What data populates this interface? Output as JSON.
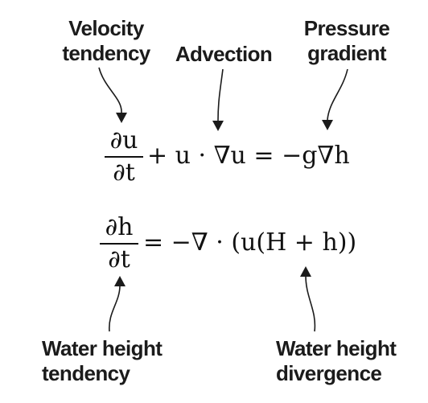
{
  "labels": {
    "velocity_tendency": [
      "Velocity",
      "tendency"
    ],
    "advection": "Advection",
    "pressure_gradient": [
      "Pressure",
      "gradient"
    ],
    "water_height_tendency": [
      "Water height",
      "tendency"
    ],
    "water_height_divergence": [
      "Water height",
      "divergence"
    ]
  },
  "equations": {
    "momentum": {
      "lhs_numerator": "∂u",
      "lhs_denominator": "∂t",
      "rhs": "+ u · ∇u = −g∇h"
    },
    "continuity": {
      "lhs_numerator": "∂h",
      "lhs_denominator": "∂t",
      "rhs": "= −∇ · (u(H + h))"
    }
  }
}
